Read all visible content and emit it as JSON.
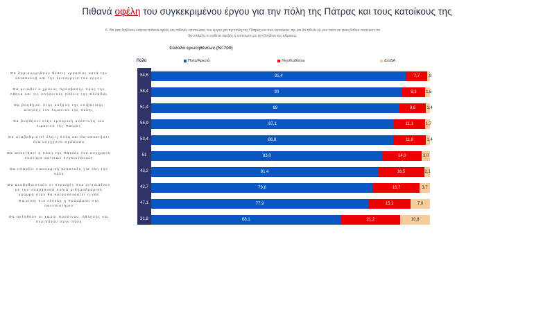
{
  "title": {
    "prefix": "Πιθανά ",
    "highlight": "οφέλη",
    "suffix": " του συγκεκριμένου έργου για την πόλη της Πάτρας και τους κατοίκους της"
  },
  "question": "6. Θα σας διαβάσω κάποια πιθανά οφέλη και πιθανές επιπτώσεις του έργου για την πόλη της Πάτρας και τους κατοίκους της και θα ήθελα να μου πείτε σε ποιο βαθμό πιστεύετε ότι θα υπάρξει το καθένα όφελος ή επίπτωση με την βοήθεια της κλίμακας:",
  "subtitle": "Σύνολο ερωτηθέντων (N=700)",
  "chart_data": {
    "type": "bar",
    "orientation": "horizontal",
    "stacked": true,
    "much_header": "Πολύ",
    "categories": [
      "Θα δημιουργηθούν θέσεις εργασίας κατά την κατασκευή και την λειτουργία του έργου",
      "Θα μειωθεί ο χρόνος πρόσβασης προς την Αθήνα και τις υπόλοιπες πόλεις της Ελλάδας",
      "Θα βοηθήσει στην αύξηση της επιβατικής κίνησης του λιμανιού της πόλης",
      "Θα βοηθήσει στην εμπορική ανάπτυξη του λιμανιού της Πάτρας",
      "Θα αναβαθμιστεί όλη η πόλη και θα αποκτήσει ένα σύγχρονο πρόσωπο",
      "Θα αποκτήσει η πόλη της Πάτρας ένα σύγχρονο σύστημα αστικών συγκοινωνιών",
      "Θα υπάρξει οικονομική ανάπτυξη για όλη την πόλη",
      "Θα αναβαθμιστούν οι περιοχές που γειτνιάζουν με την υπάρχουσα παλιά σιδηροδρομική γραμμή όταν θα κατασκευαστεί η νέα",
      "Θα είναι πιο εύκολη η πρόσβαση στο πανεπιστήμιο",
      "Θα αυξηθούν οι χώροι πρασίνου, άθλησης και περιπάτου στην πόλη"
    ],
    "much": [
      "54,6",
      "58,4",
      "51,4",
      "55,9",
      "53,4",
      "51",
      "43,2",
      "42,7",
      "47,1",
      "31,8"
    ],
    "series": [
      {
        "name": "Πολύ/Αρκετά",
        "color": "#0a57c2",
        "values": [
          91.4,
          90,
          89,
          87.1,
          86.8,
          83.0,
          81.4,
          79.6,
          77.9,
          68.1
        ],
        "labels": [
          "91,4",
          "90",
          "89",
          "87,1",
          "86,8",
          "83,0",
          "81,4",
          "79,6",
          "77,9",
          "68,1"
        ]
      },
      {
        "name": "Λίγο/Καθόλου",
        "color": "#ee0000",
        "values": [
          7.7,
          8.3,
          9.6,
          11.1,
          11.8,
          14.0,
          16.5,
          16.7,
          15.1,
          21.2
        ],
        "labels": [
          "7,7",
          "8,3",
          "9,6",
          "11,1",
          "11,8",
          "14,0",
          "16,5",
          "16,7",
          "15,1",
          "21,2"
        ]
      },
      {
        "name": "ΔΞ/ΔΑ",
        "color": "#f8cc9a",
        "values": [
          0.9,
          1.6,
          1.4,
          1.7,
          1.4,
          3.0,
          2.1,
          3.7,
          7.0,
          10.8
        ],
        "labels": [
          ",9",
          "1,6",
          "1,4",
          "1,7",
          "1,4",
          "3,0",
          "2,1",
          "3,7",
          "7,0",
          "10,8"
        ]
      }
    ],
    "xlim": [
      0,
      100
    ]
  }
}
